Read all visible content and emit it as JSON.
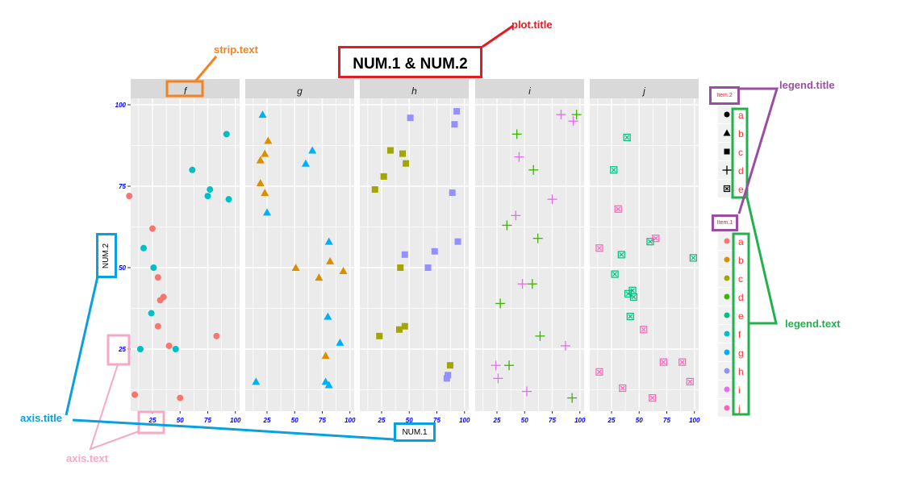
{
  "chart_data": {
    "type": "scatter",
    "title": "NUM.1 & NUM.2",
    "xlabel": "NUM.1",
    "ylabel": "NUM.2",
    "xlim": [
      5,
      103
    ],
    "ylim": [
      6,
      103
    ],
    "x_ticks": [
      25,
      50,
      75,
      100
    ],
    "y_ticks": [
      25,
      50,
      75,
      100
    ],
    "grid": true,
    "facets": [
      "f",
      "g",
      "h",
      "i",
      "j"
    ],
    "legend_position": "right",
    "legends": [
      {
        "title": "Item.2",
        "kind": "shape",
        "entries": [
          {
            "label": "a",
            "shape": "circle"
          },
          {
            "label": "b",
            "shape": "triangle"
          },
          {
            "label": "c",
            "shape": "square"
          },
          {
            "label": "d",
            "shape": "plus"
          },
          {
            "label": "e",
            "shape": "boxed-x"
          }
        ]
      },
      {
        "title": "Item.1",
        "kind": "colour",
        "entries": [
          {
            "label": "a",
            "color": "#F8766D"
          },
          {
            "label": "b",
            "color": "#D89000"
          },
          {
            "label": "c",
            "color": "#A3A500"
          },
          {
            "label": "d",
            "color": "#39B600"
          },
          {
            "label": "e",
            "color": "#00BF7D"
          },
          {
            "label": "f",
            "color": "#00BFC4"
          },
          {
            "label": "g",
            "color": "#00B0F6"
          },
          {
            "label": "h",
            "color": "#9590FF"
          },
          {
            "label": "i",
            "color": "#E76BF3"
          },
          {
            "label": "j",
            "color": "#FF62BC"
          }
        ]
      }
    ],
    "series": [
      {
        "facet": "f",
        "item1": "a",
        "item2": "a",
        "shape": "circle",
        "color": "#F8766D",
        "x": [
          4,
          25,
          30,
          32,
          35,
          30,
          83,
          40,
          9,
          50
        ],
        "y": [
          72,
          62,
          47,
          40,
          41,
          32,
          29,
          26,
          11,
          10
        ]
      },
      {
        "facet": "f",
        "item1": "f",
        "item2": "a",
        "shape": "circle",
        "color": "#00BFC4",
        "x": [
          92,
          61,
          77,
          75,
          94,
          17,
          26,
          24,
          14,
          46
        ],
        "y": [
          91,
          80,
          74,
          72,
          71,
          56,
          50,
          36,
          25,
          25
        ]
      },
      {
        "facet": "g",
        "item1": "b",
        "item2": "b",
        "shape": "triangle",
        "color": "#D89000",
        "x": [
          26,
          23,
          19,
          19,
          23,
          51,
          72,
          82,
          94,
          78
        ],
        "y": [
          89,
          85,
          83,
          76,
          73,
          50,
          47,
          52,
          49,
          23
        ]
      },
      {
        "facet": "g",
        "item1": "g",
        "item2": "b",
        "shape": "triangle",
        "color": "#00B0F6",
        "x": [
          21,
          66,
          60,
          25,
          81,
          80,
          91,
          15,
          78,
          81
        ],
        "y": [
          97,
          86,
          82,
          67,
          58,
          35,
          27,
          15,
          15,
          14
        ]
      },
      {
        "facet": "h",
        "item1": "c",
        "item2": "c",
        "shape": "square",
        "color": "#A3A500",
        "x": [
          33,
          44,
          47,
          27,
          19,
          42,
          23,
          41,
          46,
          87
        ],
        "y": [
          86,
          85,
          82,
          78,
          74,
          50,
          29,
          31,
          32,
          20
        ]
      },
      {
        "facet": "h",
        "item1": "h",
        "item2": "c",
        "shape": "square",
        "color": "#9590FF",
        "x": [
          51,
          93,
          91,
          89,
          94,
          73,
          46,
          67,
          85,
          84
        ],
        "y": [
          96,
          98,
          94,
          73,
          58,
          55,
          54,
          50,
          17,
          16
        ]
      },
      {
        "facet": "i",
        "item1": "d",
        "item2": "d",
        "shape": "plus",
        "color": "#39B600",
        "x": [
          97,
          43,
          58,
          34,
          62,
          57,
          28,
          64,
          36,
          93
        ],
        "y": [
          97,
          91,
          80,
          63,
          59,
          45,
          39,
          29,
          20,
          10
        ]
      },
      {
        "facet": "i",
        "item1": "i",
        "item2": "d",
        "shape": "plus",
        "color": "#E76BF3",
        "x": [
          83,
          94,
          45,
          75,
          42,
          48,
          87,
          24,
          26,
          52
        ],
        "y": [
          97,
          95,
          84,
          71,
          66,
          45,
          26,
          20,
          16,
          12
        ]
      },
      {
        "facet": "j",
        "item1": "e",
        "item2": "e",
        "shape": "boxed-x",
        "color": "#00BF7D",
        "x": [
          39,
          27,
          60,
          34,
          99,
          28,
          44,
          40,
          45,
          42
        ],
        "y": [
          90,
          80,
          58,
          54,
          53,
          48,
          43,
          42,
          41,
          35
        ]
      },
      {
        "facet": "j",
        "item1": "j",
        "item2": "e",
        "shape": "boxed-x",
        "color": "#FF62BC",
        "x": [
          31,
          65,
          14,
          54,
          72,
          89,
          14,
          96,
          35,
          62
        ],
        "y": [
          68,
          59,
          56,
          31,
          21,
          21,
          18,
          15,
          13,
          10
        ]
      }
    ]
  },
  "annotations": {
    "plot_title": {
      "label": "plot.title",
      "color": "#e31b23"
    },
    "strip_text": {
      "label": "strip.text",
      "color": "#f58220"
    },
    "legend_title": {
      "label": "legend.title",
      "color": "#9a4ea1"
    },
    "legend_text": {
      "label": "legend.text",
      "color": "#22b14c"
    },
    "axis_title": {
      "label": "axis.title",
      "color": "#0aa0e0"
    },
    "axis_text": {
      "label": "axis.text",
      "color": "#f7a8c8"
    }
  },
  "styles": {
    "panel_bg": "#EBEBEB",
    "strip_bg": "#D9D9D9",
    "grid_color": "#FFFFFF",
    "axis_text_color": "#0000FF",
    "legend_text_color": "#FF3333",
    "legend_key_bg": "#F2F2F2"
  }
}
